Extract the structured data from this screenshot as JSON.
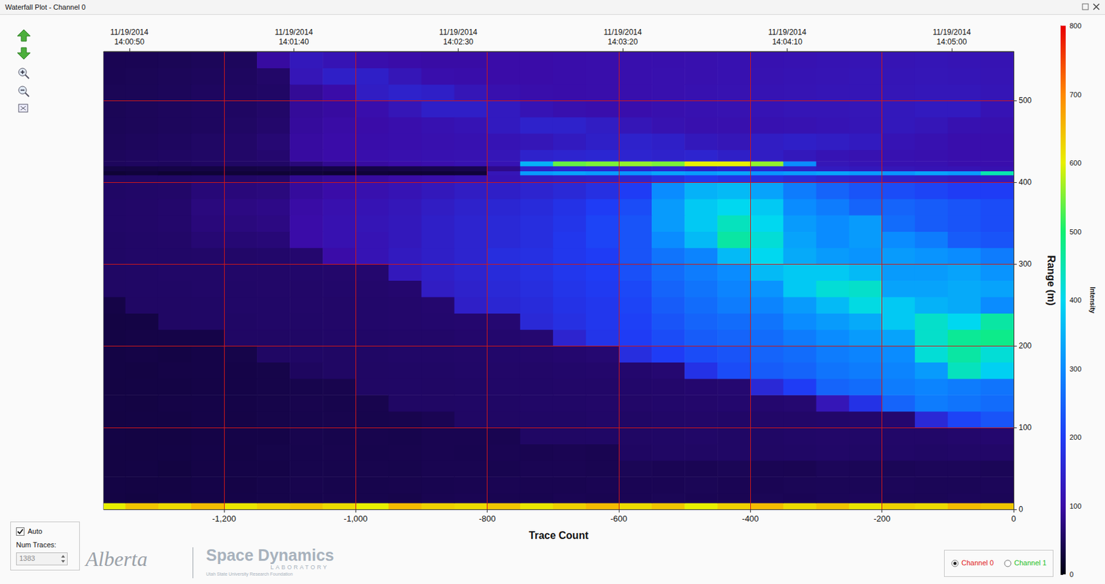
{
  "window": {
    "title": "Waterfall Plot - Channel 0",
    "auto": {
      "label": "Auto",
      "checked": true
    },
    "num_traces_label": "Num Traces:",
    "num_traces": 1383,
    "logos": {
      "left": "Alberta",
      "main": "Space Dynamics",
      "sub": "LABORATORY",
      "small": "Utah State University Research Foundation"
    },
    "channels": [
      {
        "label": "Channel 0",
        "selected": true,
        "color": "#e02020"
      },
      {
        "label": "Channel 1",
        "selected": false,
        "color": "#1fbf1f"
      }
    ]
  },
  "chart_data": {
    "type": "heatmap",
    "x_label": "Trace Count",
    "y_label": "Range (m)",
    "xlim": [
      -1383,
      0
    ],
    "xticks": [
      {
        "value": -1200,
        "label": "-1,200"
      },
      {
        "value": -1000,
        "label": "-1,000"
      },
      -800,
      -600,
      -400,
      -200,
      0
    ],
    "x2ticks": [
      {
        "value": -1344,
        "label": "11/19/2014\n14:00:50"
      },
      {
        "value": -1094,
        "label": "11/19/2014\n14:01:40"
      },
      {
        "value": -844,
        "label": "11/19/2014\n14:02:30"
      },
      {
        "value": -594,
        "label": "11/19/2014\n14:03:20"
      },
      {
        "value": -344,
        "label": "11/19/2014\n14:04:10"
      },
      {
        "value": -94,
        "label": "11/19/2014\n14:05:00"
      }
    ],
    "ylim": [
      0,
      560
    ],
    "yticks": [
      0,
      100,
      200,
      300,
      400,
      500
    ],
    "grid": true,
    "cells": {
      "x_edges": [
        -1383,
        -1350,
        -1300,
        -1250,
        -1200,
        -1150,
        -1100,
        -1050,
        -1000,
        -950,
        -900,
        -850,
        -800,
        -750,
        -700,
        -650,
        -600,
        -550,
        -500,
        -450,
        -400,
        -350,
        -300,
        -250,
        -200,
        -150,
        -100,
        -50,
        0
      ],
      "y_edges": [
        0,
        8,
        20,
        40,
        60,
        80,
        100,
        120,
        140,
        160,
        180,
        200,
        220,
        240,
        260,
        280,
        300,
        320,
        340,
        360,
        380,
        400,
        409,
        414,
        420,
        426,
        440,
        460,
        480,
        500,
        520,
        540,
        560
      ],
      "values": [
        [
          600,
          640,
          620,
          650,
          610,
          630,
          640,
          620,
          600,
          650,
          630,
          620,
          640,
          610,
          630,
          650,
          620,
          640,
          600,
          630,
          650,
          620,
          640,
          610,
          630,
          620,
          650,
          640
        ],
        [
          34,
          33,
          35,
          36,
          37,
          38,
          40,
          41,
          40,
          39,
          43,
          44,
          43,
          42,
          44,
          43,
          45,
          46,
          45,
          44,
          46,
          45,
          47,
          48,
          47,
          46,
          48,
          47
        ],
        [
          35,
          34,
          34,
          37,
          36,
          38,
          41,
          40,
          40,
          41,
          42,
          43,
          44,
          43,
          43,
          44,
          45,
          45,
          46,
          45,
          45,
          46,
          47,
          47,
          48,
          47,
          47,
          48
        ],
        [
          34,
          35,
          33,
          36,
          37,
          37,
          40,
          40,
          41,
          40,
          43,
          43,
          42,
          44,
          44,
          43,
          46,
          45,
          45,
          46,
          45,
          44,
          48,
          47,
          47,
          48,
          48,
          47
        ],
        [
          34,
          34,
          35,
          37,
          36,
          38,
          40,
          41,
          40,
          41,
          43,
          42,
          44,
          43,
          44,
          43,
          54,
          55,
          55,
          56,
          55,
          56,
          57,
          56,
          57,
          56,
          57,
          58
        ],
        [
          35,
          34,
          34,
          36,
          37,
          37,
          41,
          40,
          41,
          40,
          43,
          43,
          43,
          55,
          55,
          56,
          55,
          56,
          57,
          56,
          56,
          57,
          58,
          57,
          58,
          58,
          60,
          62
        ],
        [
          34,
          35,
          35,
          37,
          36,
          38,
          40,
          41,
          40,
          41,
          44,
          55,
          55,
          56,
          56,
          57,
          56,
          57,
          58,
          57,
          58,
          58,
          59,
          60,
          62,
          160,
          210,
          230
        ],
        [
          35,
          34,
          36,
          37,
          37,
          38,
          41,
          40,
          41,
          55,
          55,
          56,
          56,
          57,
          57,
          58,
          58,
          59,
          60,
          61,
          62,
          63,
          120,
          180,
          250,
          280,
          270,
          260
        ],
        [
          34,
          35,
          35,
          36,
          37,
          38,
          40,
          41,
          55,
          56,
          55,
          56,
          57,
          57,
          58,
          58,
          59,
          60,
          62,
          63,
          160,
          200,
          250,
          260,
          280,
          290,
          280,
          270
        ],
        [
          35,
          34,
          36,
          37,
          37,
          38,
          52,
          55,
          55,
          56,
          56,
          57,
          58,
          58,
          59,
          60,
          61,
          64,
          180,
          220,
          240,
          250,
          270,
          280,
          290,
          320,
          440,
          390
        ],
        [
          35,
          36,
          35,
          37,
          38,
          55,
          56,
          55,
          56,
          57,
          57,
          58,
          59,
          60,
          62,
          64,
          170,
          200,
          220,
          230,
          250,
          260,
          280,
          290,
          300,
          420,
          460,
          420
        ],
        [
          35,
          36,
          37,
          37,
          55,
          55,
          56,
          57,
          57,
          58,
          58,
          60,
          61,
          63,
          150,
          185,
          200,
          220,
          240,
          250,
          260,
          280,
          300,
          320,
          330,
          430,
          470,
          480
        ],
        [
          34,
          35,
          55,
          56,
          56,
          57,
          57,
          58,
          59,
          60,
          61,
          62,
          64,
          160,
          175,
          190,
          205,
          230,
          250,
          260,
          270,
          300,
          320,
          340,
          380,
          430,
          400,
          460
        ],
        [
          36,
          55,
          55,
          56,
          57,
          57,
          58,
          58,
          59,
          60,
          62,
          140,
          155,
          165,
          180,
          190,
          210,
          240,
          260,
          280,
          290,
          320,
          360,
          410,
          380,
          350,
          340,
          300
        ],
        [
          55,
          56,
          56,
          57,
          57,
          58,
          58,
          59,
          60,
          62,
          135,
          145,
          160,
          170,
          185,
          195,
          215,
          250,
          270,
          290,
          310,
          380,
          420,
          430,
          330,
          330,
          340,
          330
        ],
        [
          55,
          56,
          57,
          57,
          58,
          58,
          59,
          60,
          62,
          125,
          140,
          150,
          165,
          175,
          190,
          200,
          225,
          260,
          280,
          300,
          360,
          380,
          380,
          360,
          320,
          320,
          330,
          310
        ],
        [
          56,
          57,
          57,
          58,
          58,
          59,
          62,
          100,
          115,
          130,
          140,
          150,
          170,
          175,
          190,
          200,
          230,
          270,
          290,
          360,
          400,
          340,
          320,
          310,
          320,
          310,
          300,
          280
        ],
        [
          56,
          57,
          58,
          65,
          66,
          68,
          100,
          110,
          115,
          125,
          140,
          150,
          160,
          170,
          190,
          210,
          230,
          300,
          360,
          460,
          420,
          330,
          300,
          320,
          300,
          280,
          240,
          230
        ],
        [
          57,
          58,
          60,
          70,
          72,
          75,
          100,
          110,
          118,
          125,
          140,
          150,
          160,
          170,
          185,
          210,
          230,
          320,
          380,
          440,
          400,
          320,
          300,
          320,
          260,
          240,
          230,
          220
        ],
        [
          57,
          58,
          60,
          72,
          75,
          78,
          98,
          108,
          115,
          122,
          135,
          145,
          155,
          165,
          180,
          200,
          220,
          320,
          380,
          400,
          380,
          300,
          280,
          250,
          250,
          240,
          230,
          220
        ],
        [
          56,
          57,
          58,
          68,
          70,
          72,
          92,
          100,
          108,
          115,
          125,
          135,
          140,
          150,
          160,
          175,
          200,
          300,
          350,
          360,
          330,
          280,
          250,
          230,
          220,
          210,
          200,
          200
        ],
        [
          55,
          55,
          56,
          57,
          58,
          60,
          85,
          90,
          95,
          100,
          105,
          110,
          115,
          130,
          135,
          140,
          150,
          170,
          190,
          180,
          170,
          160,
          150,
          145,
          140,
          135,
          130,
          130
        ],
        [
          25,
          28,
          24,
          26,
          27,
          25,
          26,
          24,
          27,
          25,
          26,
          28,
          120,
          320,
          330,
          320,
          310,
          330,
          320,
          330,
          310,
          320,
          330,
          320,
          310,
          330,
          320,
          450
        ],
        [
          35,
          34,
          36,
          35,
          34,
          36,
          35,
          37,
          36,
          38,
          40,
          42,
          80,
          140,
          150,
          150,
          145,
          150,
          140,
          145,
          150,
          140,
          130,
          125,
          120,
          115,
          115,
          110
        ],
        [
          50,
          52,
          50,
          54,
          55,
          56,
          70,
          85,
          95,
          100,
          105,
          110,
          115,
          350,
          540,
          550,
          560,
          550,
          600,
          600,
          560,
          300,
          120,
          115,
          110,
          110,
          105,
          105
        ],
        [
          50,
          52,
          54,
          56,
          58,
          62,
          95,
          100,
          105,
          108,
          110,
          112,
          120,
          145,
          150,
          155,
          150,
          145,
          150,
          140,
          135,
          125,
          115,
          112,
          110,
          108,
          105,
          105
        ],
        [
          48,
          50,
          52,
          55,
          58,
          65,
          95,
          100,
          102,
          105,
          108,
          110,
          115,
          120,
          130,
          140,
          145,
          140,
          125,
          120,
          135,
          140,
          135,
          130,
          115,
          110,
          105,
          105
        ],
        [
          47,
          48,
          50,
          52,
          55,
          60,
          92,
          98,
          100,
          105,
          110,
          115,
          130,
          145,
          145,
          135,
          120,
          112,
          108,
          108,
          110,
          112,
          115,
          118,
          125,
          120,
          110,
          108
        ],
        [
          46,
          48,
          50,
          52,
          54,
          58,
          90,
          95,
          105,
          120,
          140,
          140,
          130,
          115,
          108,
          105,
          105,
          108,
          110,
          112,
          115,
          118,
          118,
          120,
          125,
          130,
          130,
          115
        ],
        [
          46,
          47,
          49,
          52,
          53,
          56,
          88,
          100,
          135,
          145,
          140,
          120,
          108,
          104,
          102,
          104,
          106,
          108,
          110,
          112,
          114,
          116,
          118,
          118,
          120,
          122,
          122,
          118
        ],
        [
          45,
          46,
          48,
          50,
          52,
          58,
          120,
          140,
          140,
          120,
          105,
          102,
          100,
          100,
          102,
          104,
          106,
          108,
          108,
          110,
          112,
          114,
          116,
          118,
          118,
          120,
          118,
          116
        ],
        [
          44,
          45,
          46,
          48,
          50,
          95,
          125,
          115,
          105,
          100,
          98,
          98,
          100,
          100,
          102,
          104,
          106,
          106,
          108,
          110,
          110,
          112,
          114,
          116,
          116,
          118,
          116,
          114
        ]
      ]
    },
    "colorbar": {
      "label": "Intensity",
      "range": [
        0,
        800
      ],
      "ticks": [
        0,
        100,
        200,
        300,
        400,
        500,
        600,
        700,
        800
      ],
      "colors": [
        "#000010",
        "#3a0ca8",
        "#1f3cf5",
        "#0a8cff",
        "#00d8f0",
        "#10f070",
        "#e8f000",
        "#ff8800",
        "#e80000"
      ]
    }
  }
}
